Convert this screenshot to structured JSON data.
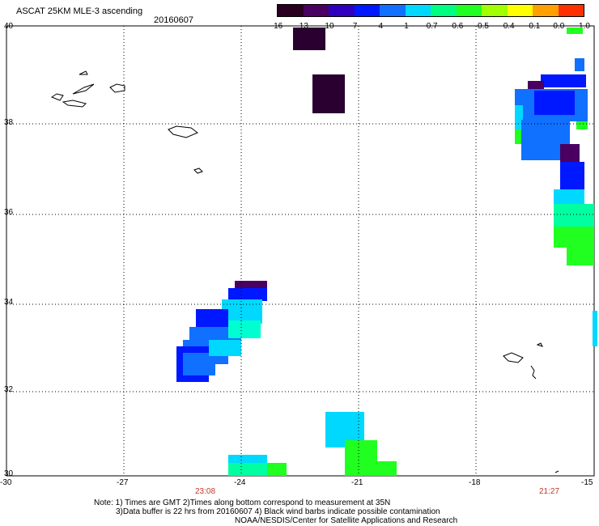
{
  "header": {
    "title": "ASCAT 25KM MLE-3 ascending",
    "date": "20160607"
  },
  "colorbar": {
    "labels": [
      "-16",
      "-13",
      "-10",
      "-7",
      "-4",
      "-1",
      "-0.7",
      "-0.6",
      "-0.5",
      "-0.4",
      "-0.1",
      "0.0",
      "1.0"
    ],
    "colors": [
      "#2a0020",
      "#4a0060",
      "#3000c0",
      "#0018ff",
      "#1070ff",
      "#00d8ff",
      "#00ff80",
      "#20ff20",
      "#a0ff00",
      "#ffff00",
      "#ffa000",
      "#ff3000"
    ]
  },
  "axes": {
    "x_ticks": [
      "-30",
      "-27",
      "-24",
      "-21",
      "-18",
      "-15"
    ],
    "y_ticks": [
      "40",
      "38",
      "36",
      "34",
      "32",
      "30"
    ]
  },
  "times": {
    "left": "23:08",
    "right": "21:27"
  },
  "notes": {
    "line1": "Note: 1) Times are GMT 2)Times along bottom correspond to measurement at 35N",
    "line2": "3)Data buffer is 22 hrs from 20160607 4) Black wind barbs indicate possible contamination",
    "line3": "NOAA/NESDIS/Center for Satellite Applications and Research"
  }
}
